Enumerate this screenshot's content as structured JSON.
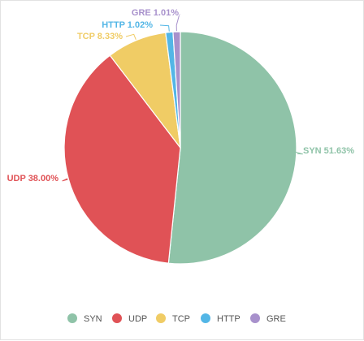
{
  "chart_data": {
    "type": "pie",
    "title": "",
    "slices": [
      {
        "label": "SYN",
        "value": 51.63,
        "color": "#8fc3a8",
        "data_label": "SYN 51.63%"
      },
      {
        "label": "UDP",
        "value": 38.0,
        "color": "#e05256",
        "data_label": "UDP 38.00%"
      },
      {
        "label": "TCP",
        "value": 8.33,
        "color": "#f0cc65",
        "data_label": "TCP 8.33%"
      },
      {
        "label": "HTTP",
        "value": 1.02,
        "color": "#53b6e6",
        "data_label": "HTTP 1.02%"
      },
      {
        "label": "GRE",
        "value": 1.01,
        "color": "#a891cc",
        "data_label": "GRE 1.01%"
      }
    ],
    "legend": {
      "position": "bottom",
      "items": [
        "SYN",
        "UDP",
        "TCP",
        "HTTP",
        "GRE"
      ]
    },
    "data_labels": true,
    "start_angle": "top",
    "direction": "clockwise"
  }
}
